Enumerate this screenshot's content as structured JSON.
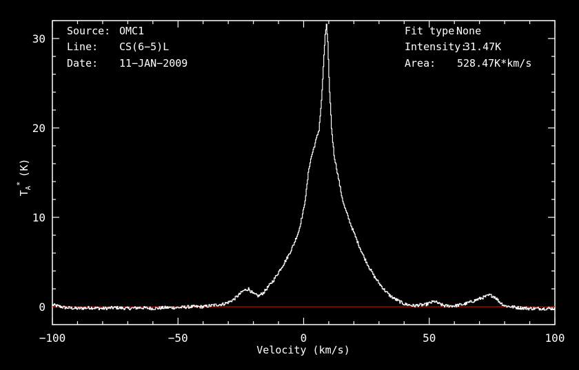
{
  "chart_data": {
    "type": "line",
    "xlabel": "Velocity (km/s)",
    "ylabel_main": "T",
    "ylabel_sub": "A",
    "ylabel_sup": "*",
    "ylabel_unit": "(K)",
    "xlim": [
      -100,
      100
    ],
    "ylim": [
      -2,
      32
    ],
    "xticks": [
      -100,
      -50,
      0,
      50,
      100
    ],
    "xtick_labels": [
      "−100",
      "−50",
      "0",
      "50",
      "100"
    ],
    "yticks": [
      0,
      10,
      20,
      30
    ],
    "ytick_labels": [
      "0",
      "10",
      "20",
      "30"
    ],
    "grid": false,
    "baseline": 0,
    "colors": {
      "background": "#000000",
      "axes": "#ffffff",
      "spectrum": "#ffffff",
      "baseline": "#cc0000"
    },
    "series": [
      {
        "x": [
          -100,
          -95,
          -90,
          -85,
          -80,
          -75,
          -70,
          -65,
          -60,
          -55,
          -50,
          -45,
          -40,
          -35,
          -32,
          -30,
          -28,
          -26,
          -24,
          -22,
          -20,
          -18,
          -16,
          -14,
          -12,
          -10,
          -8,
          -6,
          -4,
          -2,
          0,
          1,
          2,
          3,
          4,
          5,
          6,
          7,
          8,
          8.5,
          9,
          9.5,
          10,
          11,
          12,
          13,
          14,
          15,
          16,
          18,
          20,
          22,
          24,
          26,
          28,
          30,
          32,
          34,
          36,
          38,
          40,
          42,
          44,
          46,
          48,
          50,
          52,
          54,
          56,
          58,
          60,
          62,
          64,
          66,
          68,
          70,
          72,
          74,
          76,
          78,
          80,
          85,
          90,
          95,
          100
        ],
        "y": [
          0.2,
          -0.1,
          -0.2,
          -0.1,
          -0.2,
          -0.1,
          -0.2,
          -0.1,
          -0.2,
          -0.1,
          -0.1,
          0,
          0,
          0.2,
          0.3,
          0.5,
          0.8,
          1.3,
          1.8,
          2.0,
          1.4,
          1.2,
          1.6,
          2.3,
          3.0,
          3.9,
          4.8,
          5.8,
          7.0,
          8.5,
          11,
          13,
          15.5,
          16.8,
          17.8,
          18.8,
          19.8,
          23,
          28,
          30.5,
          31.5,
          29.5,
          25.5,
          20,
          17,
          15.5,
          14,
          12.5,
          11.3,
          9.7,
          8.2,
          6.8,
          5.5,
          4.4,
          3.4,
          2.6,
          1.9,
          1.3,
          0.9,
          0.6,
          0.3,
          0.2,
          0.1,
          0.2,
          0.2,
          0.4,
          0.6,
          0.3,
          0.1,
          0.1,
          0.1,
          0.2,
          0.3,
          0.5,
          0.7,
          0.9,
          1.1,
          1.3,
          1.1,
          0.5,
          0.1,
          -0.1,
          -0.2,
          -0.2,
          -0.2
        ]
      }
    ]
  },
  "info": {
    "source_label": "Source:",
    "source_value": "OMC1",
    "line_label": "Line:",
    "line_value": "CS(6−5)L",
    "date_label": "Date:",
    "date_value": "11−JAN−2009",
    "fit_label": "Fit type:",
    "fit_value": "None",
    "intensity_label": "Intensity:",
    "intensity_value": "31.47K",
    "area_label": "Area:",
    "area_value": "528.47K*km/s"
  }
}
